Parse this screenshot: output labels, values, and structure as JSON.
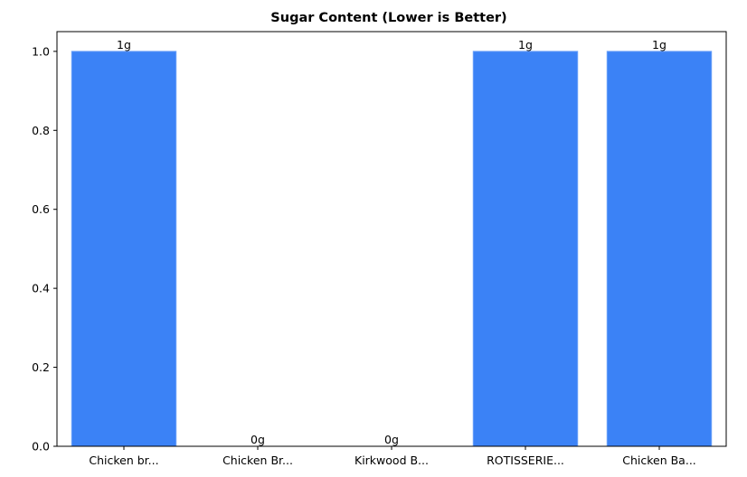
{
  "chart_data": {
    "type": "bar",
    "title": "Sugar Content (Lower is Better)",
    "xlabel": "",
    "ylabel": "",
    "categories": [
      "Chicken br...",
      "Chicken Br...",
      "Kirkwood B...",
      "ROTISSERIE...",
      "Chicken Ba..."
    ],
    "values": [
      1,
      0,
      0,
      1,
      1
    ],
    "data_labels": [
      "1g",
      "0g",
      "0g",
      "1g",
      "1g"
    ],
    "ylim": [
      0,
      1.05
    ],
    "yticks": [
      0.0,
      0.2,
      0.4,
      0.6,
      0.8,
      1.0
    ],
    "ytick_labels": [
      "0.0",
      "0.2",
      "0.4",
      "0.6",
      "0.8",
      "1.0"
    ],
    "grid": false,
    "bar_color": "#3b82f6",
    "bar_edge_color": "#6aa0f8"
  }
}
